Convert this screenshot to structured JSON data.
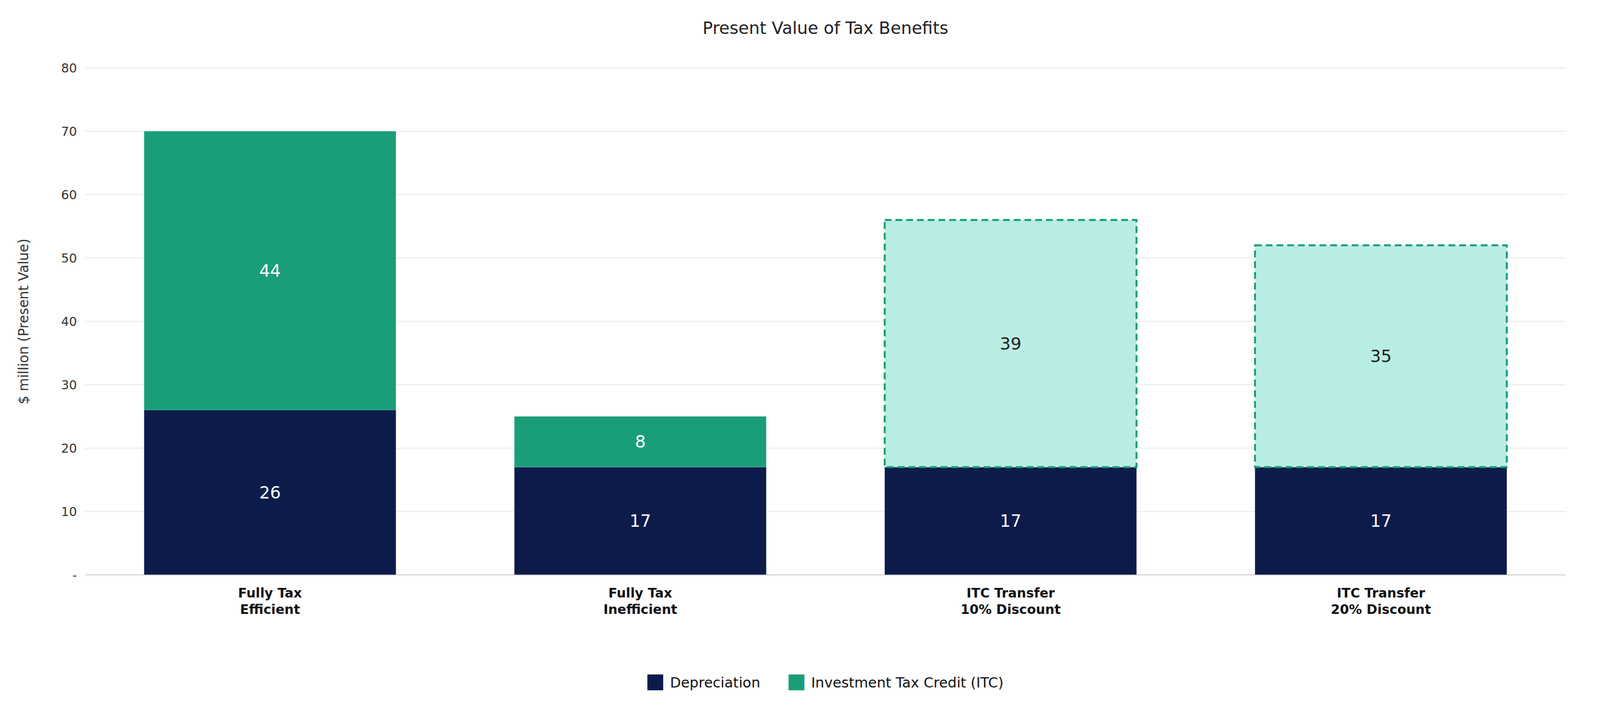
{
  "chart_data": {
    "type": "bar",
    "stacked": true,
    "title": "Present Value of Tax Benefits",
    "y_label": "$ million (Present Value)",
    "categories": [
      "Fully Tax\nEfficient",
      "Fully Tax\nInefficient",
      "ITC Transfer\n10% Discount",
      "ITC Transfer\n20% Discount"
    ],
    "series": [
      {
        "name": "Depreciation",
        "color": "#0d1b4b",
        "values": [
          26,
          17,
          17,
          17
        ]
      },
      {
        "name": "Investment Tax Credit (ITC)",
        "color": "#1a9e7a",
        "colors": [
          "#1a9e7a",
          "#1a9e7a",
          "#b8ede3",
          "#b8ede3"
        ],
        "values": [
          44,
          8,
          39,
          35
        ]
      }
    ],
    "ylim": [
      0,
      80
    ],
    "yticks": [
      {
        "value": 0,
        "label": "-"
      },
      10,
      20,
      30,
      40,
      50,
      60,
      70,
      80
    ],
    "grid": true,
    "legend": "bottom",
    "data_labels": true
  }
}
